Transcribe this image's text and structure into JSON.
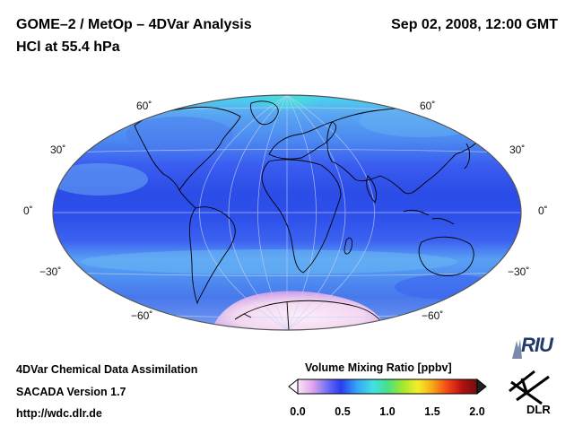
{
  "header": {
    "title": "GOME–2 / MetOp – 4DVar Analysis",
    "subtitle": "HCl at 55.4 hPa",
    "date": "Sep 02, 2008, 12:00 GMT"
  },
  "map": {
    "projection": "Hammer-Aitoff",
    "lat_labels": [
      "60˚",
      "30˚",
      "0˚",
      "−30˚",
      "−60˚"
    ],
    "colors": {
      "background_blue": "#3a5cf0",
      "equatorial_blue": "#2b4ce6",
      "light_blue": "#5aa6f2",
      "cyan": "#46d8ee",
      "antarctic_pink": "#f4d8f0",
      "coastline": "#000000"
    }
  },
  "footer": {
    "line1": "4DVar Chemical Data Assimilation",
    "line2": "SACADA Version 1.7",
    "line3": "http://wdc.dlr.de"
  },
  "colorbar": {
    "title": "Volume Mixing Ratio [ppbv]",
    "ticks": [
      "0.0",
      "0.5",
      "1.0",
      "1.5",
      "2.0"
    ],
    "min": 0.0,
    "max": 2.0,
    "stops": [
      "#f7e6f7",
      "#e3a6ec",
      "#6b6cf2",
      "#2a3cf0",
      "#34a6f4",
      "#44e0e6",
      "#46e08a",
      "#9ee630",
      "#f4ee28",
      "#f8a818",
      "#f04018",
      "#b01010",
      "#701010"
    ]
  },
  "logos": {
    "riu": "RIU",
    "dlr": "DLR"
  }
}
